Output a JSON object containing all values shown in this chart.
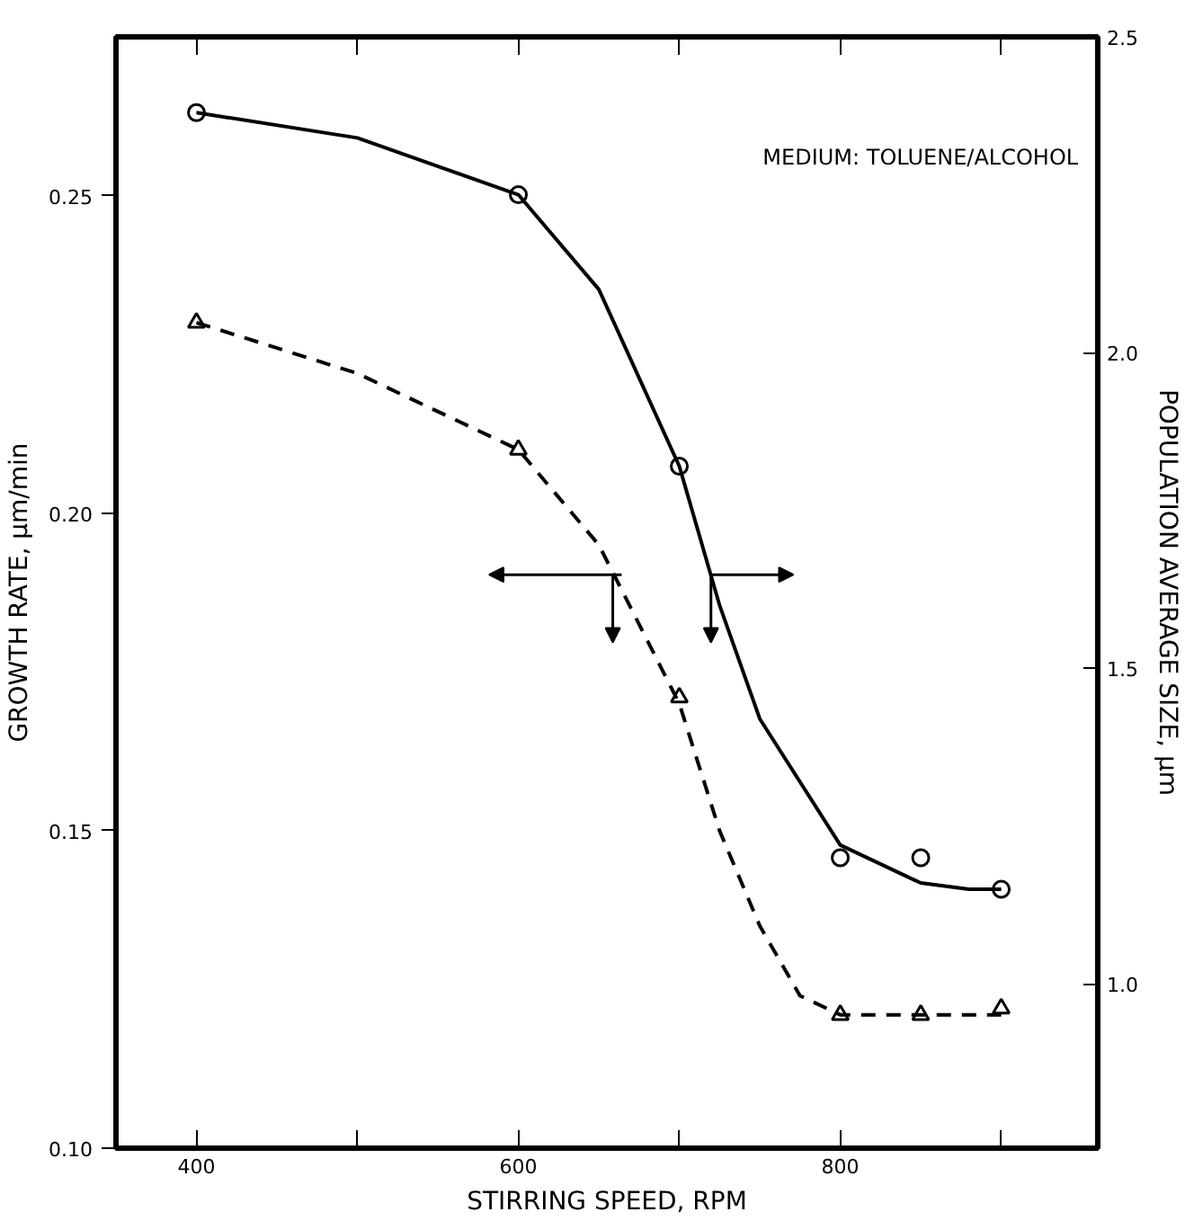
{
  "chart_data": {
    "type": "scatter",
    "xlabel": "STIRRING SPEED, RPM",
    "ylabel": "GROWTH RATE, μm/min",
    "y2label": "POPULATION AVERAGE SIZE, μm",
    "annotations": [
      "MEDIUM: TOLUENE/ALCOHOL"
    ],
    "xlim": [
      350,
      960
    ],
    "xticks": [
      400,
      {
        "value": 500,
        "label": null
      },
      600,
      {
        "value": 700,
        "label": null
      },
      800,
      {
        "value": 900,
        "label": null
      }
    ],
    "ylim": [
      0.1,
      0.275
    ],
    "yticks": [
      {
        "value": 0.1,
        "label": "0.10"
      },
      0.15,
      {
        "value": 0.2,
        "label": "0.20"
      },
      0.25
    ],
    "y2lim": [
      0.74,
      2.5
    ],
    "y2ticks": [
      {
        "value": 1.0,
        "label": "1.0"
      },
      1.5,
      {
        "value": 2.0,
        "label": "2.0"
      },
      2.5
    ],
    "series": [
      {
        "marker": "circle",
        "axis": "y2",
        "color": "#000000",
        "x": [
          400,
          600,
          700,
          800,
          850,
          900
        ],
        "values": [
          2.38,
          2.25,
          1.82,
          1.2,
          1.2,
          1.15
        ]
      },
      {
        "type": "line",
        "marker": "none",
        "line_style": "solid",
        "axis": "y2",
        "color": "#000000",
        "x": [
          400,
          500,
          600,
          650,
          700,
          725,
          750,
          800,
          850,
          880,
          900
        ],
        "values": [
          2.38,
          2.34,
          2.25,
          2.1,
          1.82,
          1.6,
          1.42,
          1.22,
          1.16,
          1.15,
          1.15
        ]
      },
      {
        "marker": "triangle",
        "color": "#000000",
        "x": [
          400,
          600,
          700,
          800,
          850,
          900
        ],
        "values": [
          0.23,
          0.21,
          0.171,
          0.121,
          0.121,
          0.122
        ]
      },
      {
        "type": "line",
        "marker": "none",
        "line_style": "dashed",
        "color": "#000000",
        "x": [
          400,
          500,
          600,
          650,
          700,
          725,
          750,
          775,
          800,
          900
        ],
        "values": [
          0.23,
          0.222,
          0.21,
          0.195,
          0.17,
          0.15,
          0.135,
          0.124,
          0.121,
          0.121
        ]
      }
    ]
  }
}
